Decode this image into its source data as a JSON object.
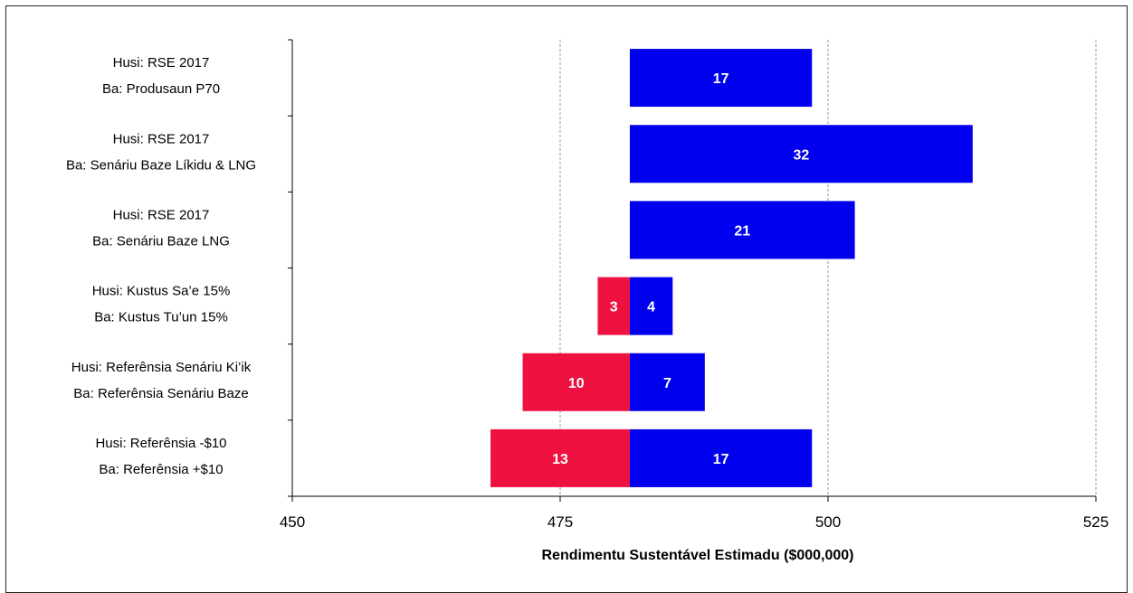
{
  "chart_data": {
    "type": "bar",
    "orientation": "horizontal",
    "base": 481.5,
    "categories": [
      {
        "line1": "Husi: RSE 2017",
        "line2": "Ba: Produsaun P70"
      },
      {
        "line1": "Husi: RSE 2017",
        "line2": "Ba: Senáriu Baze Líkidu & LNG"
      },
      {
        "line1": "Husi: RSE 2017",
        "line2": "Ba: Senáriu Baze LNG"
      },
      {
        "line1": "Husi: Kustus Sa’e 15%",
        "line2": "Ba: Kustus Tu’un 15%"
      },
      {
        "line1": "Husi: Referênsia Senáriu  Ki’ik",
        "line2": "Ba: Referênsia Senáriu Baze"
      },
      {
        "line1": "Husi: Referênsia -$10",
        "line2": "Ba: Referênsia +$10"
      }
    ],
    "series": [
      {
        "color": "#ee1140",
        "values": [
          0,
          0,
          0,
          3,
          10,
          13
        ]
      },
      {
        "color": "#0000ee",
        "values": [
          17,
          32,
          21,
          4,
          7,
          17
        ]
      }
    ],
    "xlim": [
      450,
      525
    ],
    "xticks": [
      "450",
      "475",
      "500",
      "525"
    ],
    "gridlines_at": [
      475,
      500,
      525
    ],
    "xlabel": "Rendimentu Sustentável Estimadu ($000,000)",
    "title": ""
  }
}
